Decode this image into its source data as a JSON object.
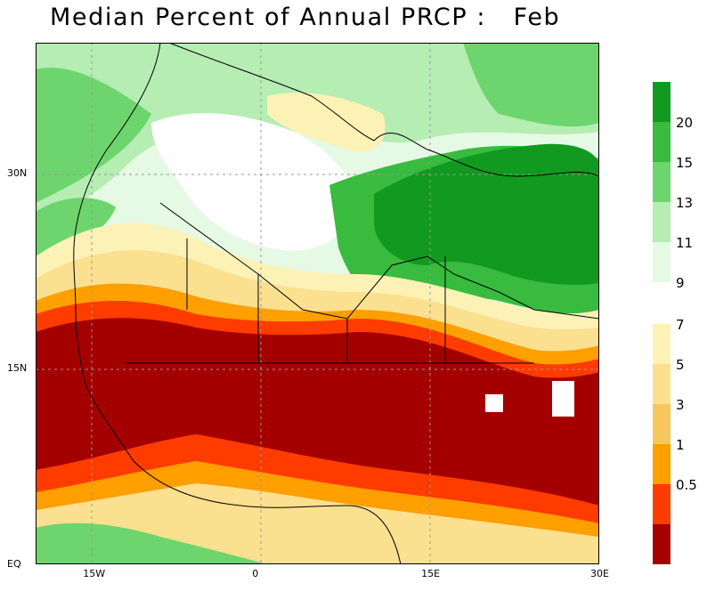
{
  "title": "Median Percent of Annual PRCP :   Feb",
  "axes": {
    "x_ticks": [
      {
        "label": "15W",
        "lon": -15
      },
      {
        "label": "0",
        "lon": 0
      },
      {
        "label": "15E",
        "lon": 15
      },
      {
        "label": "30E",
        "lon": 30
      }
    ],
    "y_ticks": [
      {
        "label": "EQ",
        "lat": 0
      },
      {
        "label": "15N",
        "lat": 15
      },
      {
        "label": "30N",
        "lat": 30
      }
    ],
    "lon_range": [
      -20,
      30
    ],
    "lat_range": [
      0,
      40
    ],
    "grid": "dashed"
  },
  "legend": {
    "upper": [
      {
        "label": "20",
        "color": "#119a1f"
      },
      {
        "label": "15",
        "color": "#38bb3e"
      },
      {
        "label": "13",
        "color": "#6ed56e"
      },
      {
        "label": "11",
        "color": "#b5edb3"
      },
      {
        "label": "9",
        "color": "#e5f9e4"
      }
    ],
    "upper_top_color": "#119a1f",
    "lower": [
      {
        "label": "7",
        "color": "#fdf2b6"
      },
      {
        "label": "5",
        "color": "#fbe08f"
      },
      {
        "label": "3",
        "color": "#f6c75f"
      },
      {
        "label": "1",
        "color": "#ff9f00"
      },
      {
        "label": "0.5",
        "color": "#ff3c00"
      }
    ],
    "lower_bottom_color": "#a50000"
  },
  "map": {
    "ocean_color": "#ffffff",
    "colors": {
      "dark_red": "#a50000",
      "red": "#ff3c00",
      "orange": "#ff9f00",
      "tan": "#f6c75f",
      "yellow": "#fbe08f",
      "cream": "#fdf2b6",
      "white": "#ffffff",
      "pale_green": "#e5f9e4",
      "light_green": "#b5edb3",
      "mid_green": "#6ed56e",
      "green": "#38bb3e",
      "dark_green": "#119a1f"
    }
  }
}
